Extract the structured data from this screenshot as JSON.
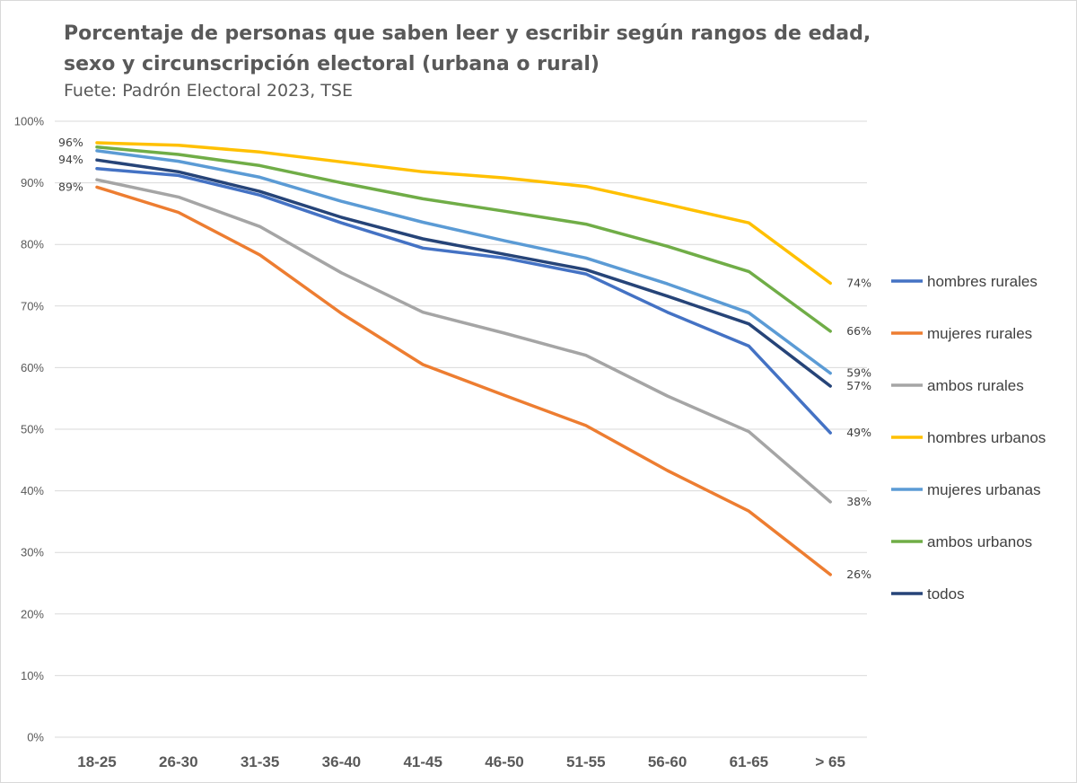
{
  "header": {
    "title": "Porcentaje de personas que saben leer y escribir según rangos de edad, sexo y circunscripción electoral (urbana o rural)",
    "subtitle": "Fuete: Padrón Electoral 2023, TSE"
  },
  "chart_data": {
    "type": "line",
    "title": "Porcentaje de personas que saben leer y escribir según rangos de edad, sexo y circunscripción electoral (urbana o rural)",
    "subtitle": "Fuete: Padrón Electoral 2023, TSE",
    "xlabel": "",
    "ylabel": "",
    "categories": [
      "18-25",
      "26-30",
      "31-35",
      "36-40",
      "41-45",
      "46-50",
      "51-55",
      "56-60",
      "61-65",
      "> 65"
    ],
    "ylim": [
      0,
      100
    ],
    "yticks": [
      "0%",
      "10%",
      "20%",
      "30%",
      "40%",
      "50%",
      "60%",
      "70%",
      "80%",
      "90%",
      "100%"
    ],
    "grid": true,
    "legend_position": "right",
    "series": [
      {
        "name": "hombres rurales",
        "color": "#4472c4",
        "values": [
          92.3,
          91.2,
          88.0,
          83.5,
          79.4,
          77.8,
          75.2,
          69.0,
          63.5,
          49.4
        ],
        "start_label": "",
        "end_label": "49%"
      },
      {
        "name": "mujeres rurales",
        "color": "#ed7d31",
        "values": [
          89.3,
          85.2,
          78.3,
          68.8,
          60.5,
          55.5,
          50.6,
          43.3,
          36.7,
          26.4
        ],
        "start_label": "89%",
        "end_label": "26%"
      },
      {
        "name": "ambos rurales",
        "color": "#a5a5a5",
        "values": [
          90.5,
          87.7,
          82.9,
          75.4,
          69.0,
          65.6,
          62.0,
          55.4,
          49.6,
          38.2
        ],
        "start_label": "",
        "end_label": "38%"
      },
      {
        "name": "hombres urbanos",
        "color": "#ffc000",
        "values": [
          96.5,
          96.1,
          95.0,
          93.4,
          91.8,
          90.8,
          89.4,
          86.5,
          83.5,
          73.7
        ],
        "start_label": "96%",
        "end_label": "74%"
      },
      {
        "name": "mujeres urbanas",
        "color": "#5b9bd5",
        "values": [
          95.2,
          93.5,
          90.9,
          87.0,
          83.6,
          80.6,
          77.8,
          73.6,
          68.9,
          59.1
        ],
        "start_label": "",
        "end_label": "59%"
      },
      {
        "name": "ambos urbanos",
        "color": "#70ad47",
        "values": [
          95.8,
          94.6,
          92.8,
          90.0,
          87.4,
          85.4,
          83.3,
          79.7,
          75.6,
          65.9
        ],
        "start_label": "",
        "end_label": "66%"
      },
      {
        "name": "todos",
        "color": "#264478",
        "values": [
          93.7,
          91.8,
          88.6,
          84.4,
          80.9,
          78.4,
          75.9,
          71.6,
          67.1,
          57.0
        ],
        "start_label": "94%",
        "end_label": "57%"
      }
    ]
  }
}
